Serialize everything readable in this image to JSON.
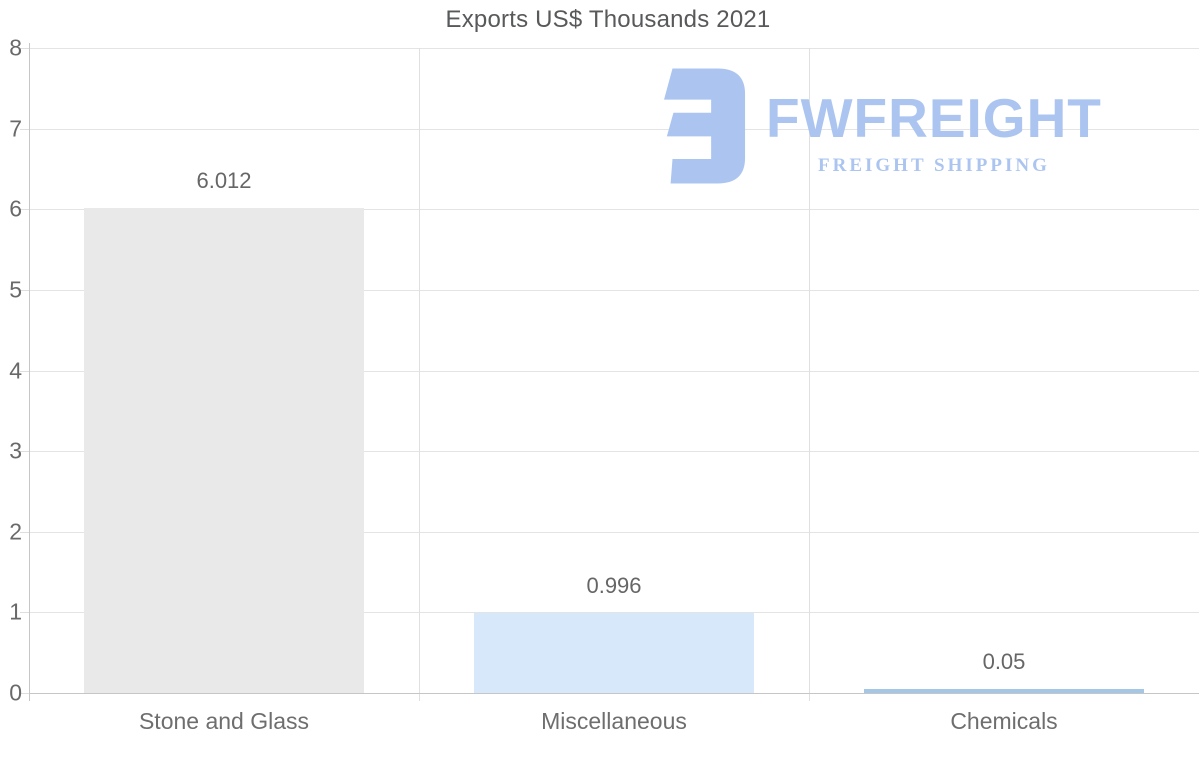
{
  "chart_data": {
    "type": "bar",
    "title": "Exports US$ Thousands 2021",
    "categories": [
      "Stone and Glass",
      "Miscellaneous",
      "Chemicals"
    ],
    "values": [
      6.012,
      0.996,
      0.05
    ],
    "value_labels": [
      "6.012",
      "0.996",
      "0.05"
    ],
    "bar_colors": [
      "#e9e9e9",
      "#d6e8f9",
      "#a4c7e6"
    ],
    "xlabel": "",
    "ylabel": "",
    "ylim": [
      0,
      8
    ],
    "yticks": [
      0,
      1,
      2,
      3,
      4,
      5,
      6,
      7,
      8
    ],
    "grid": true,
    "legend": false,
    "colors": {
      "grid": "#e4e4e4",
      "axis": "#c6c6c6",
      "title_text": "#58595b",
      "tick_text": "#696969",
      "value_text": "#666666",
      "category_text": "#6e6e6e"
    }
  },
  "watermark": {
    "brand": "FWFREIGHT",
    "tagline": "FREIGHT SHIPPING",
    "color": "#abc5f0",
    "icon": "fwfreight-logo-icon"
  }
}
